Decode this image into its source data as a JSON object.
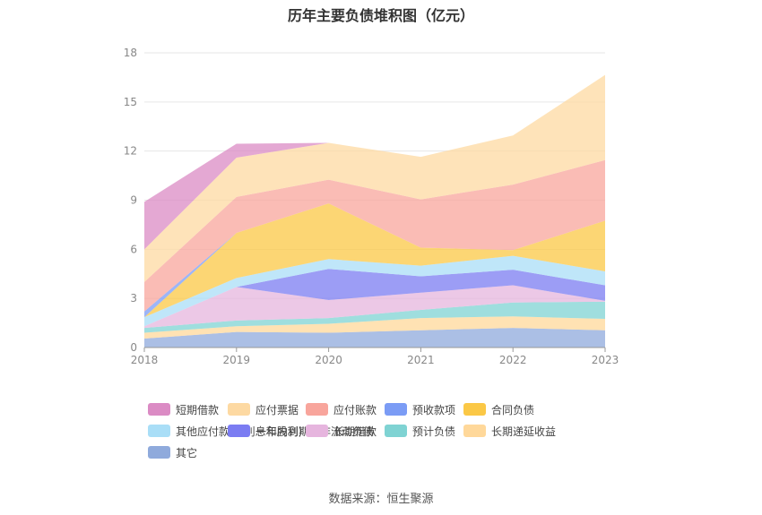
{
  "title": "历年主要负债堆积图（亿元）",
  "source": "数据来源：恒生聚源",
  "colors": {
    "grid": "#e6e6e6",
    "axis": "#999999",
    "tick_text": "#888888"
  },
  "chart_data": {
    "type": "area",
    "stacked": true,
    "title": "历年主要负债堆积图（亿元）",
    "x": [
      "2018",
      "2019",
      "2020",
      "2021",
      "2022",
      "2023"
    ],
    "yticks": [
      0,
      3,
      6,
      9,
      12,
      15,
      18
    ],
    "ylim": [
      0,
      18
    ],
    "grid": true,
    "legend_position": "bottom",
    "series": [
      {
        "name": "其它",
        "color": "#8faadc",
        "values": [
          0.55,
          0.95,
          0.9,
          1.05,
          1.2,
          1.05
        ]
      },
      {
        "name": "长期递延收益",
        "color": "#ffd89a",
        "values": [
          0.35,
          0.35,
          0.55,
          0.75,
          0.7,
          0.7
        ]
      },
      {
        "name": "预计负债",
        "color": "#7fd3d3",
        "values": [
          0.3,
          0.35,
          0.35,
          0.5,
          0.85,
          1.05
        ]
      },
      {
        "name": "长期借款",
        "color": "#e6b5de",
        "values": [
          0.1,
          2.05,
          1.1,
          1.05,
          1.05,
          0.05
        ]
      },
      {
        "name": "一年内到期的非流动负债",
        "color": "#7b7cf2",
        "values": [
          0.0,
          0.0,
          1.9,
          1.0,
          0.95,
          0.95
        ]
      },
      {
        "name": "其他应付款(含利息和股利)",
        "color": "#a9def7",
        "values": [
          0.55,
          0.55,
          0.6,
          0.65,
          0.85,
          0.85
        ]
      },
      {
        "name": "合同负债",
        "color": "#fbc846",
        "values": [
          0.0,
          2.75,
          3.4,
          1.1,
          0.35,
          3.1
        ]
      },
      {
        "name": "预收款项",
        "color": "#7b9cf5",
        "values": [
          0.35,
          0.0,
          0.0,
          0.0,
          0.0,
          0.0
        ]
      },
      {
        "name": "应付账款",
        "color": "#f8a59c",
        "values": [
          1.8,
          2.2,
          1.45,
          2.95,
          4.0,
          3.7
        ]
      },
      {
        "name": "应付票据",
        "color": "#fdd9a2",
        "values": [
          2.0,
          2.4,
          2.25,
          2.6,
          3.0,
          5.2
        ]
      },
      {
        "name": "短期借款",
        "color": "#db8bc4",
        "values": [
          2.9,
          0.85,
          0.0,
          0.0,
          0.0,
          0.0
        ]
      }
    ]
  },
  "legend": [
    {
      "label": "短期借款",
      "color": "#db8bc4"
    },
    {
      "label": "应付票据",
      "color": "#fdd9a2"
    },
    {
      "label": "应付账款",
      "color": "#f8a59c"
    },
    {
      "label": "预收款项",
      "color": "#7b9cf5"
    },
    {
      "label": "合同负债",
      "color": "#fbc846"
    },
    {
      "label": "其他应付款(含利息和股利)",
      "color": "#a9def7"
    },
    {
      "label": "一年内到期的非流动负债",
      "color": "#7b7cf2"
    },
    {
      "label": "长期借款",
      "color": "#e6b5de"
    },
    {
      "label": "预计负债",
      "color": "#7fd3d3"
    },
    {
      "label": "长期递延收益",
      "color": "#ffd89a"
    },
    {
      "label": "其它",
      "color": "#8faadc"
    }
  ]
}
